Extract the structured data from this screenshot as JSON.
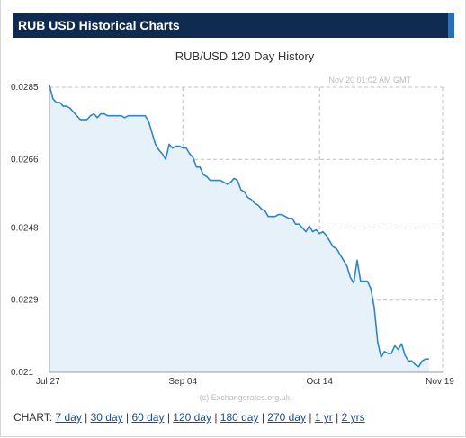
{
  "header": {
    "title": "RUB USD Historical Charts"
  },
  "chart_data": {
    "type": "area",
    "title": "RUB/USD  120 Day History",
    "timestamp": "Nov 20  01:02 AM GMT",
    "watermark": "(c) Exchangerates.org.uk",
    "xlabel": "",
    "ylabel": "",
    "ylim": [
      0.021,
      0.0285
    ],
    "yticks": [
      "0.0285",
      "0.0266",
      "0.0248",
      "0.0229",
      "0.021"
    ],
    "ytick_values": [
      0.0285,
      0.0266,
      0.0248,
      0.0229,
      0.021
    ],
    "xlim": [
      0,
      115
    ],
    "xticks": [
      {
        "label": "Jul 27",
        "day": 0
      },
      {
        "label": "Sep 04",
        "day": 39
      },
      {
        "label": "Oct 14",
        "day": 79
      },
      {
        "label": "Nov 19",
        "day": 115
      }
    ],
    "grid": true,
    "legend": "none",
    "series": [
      {
        "color": "#2f86c1",
        "fill": "#e6f1fa",
        "points": [
          [
            0,
            0.02855
          ],
          [
            1,
            0.0282
          ],
          [
            2,
            0.0281
          ],
          [
            3,
            0.0281
          ],
          [
            4,
            0.028
          ],
          [
            5,
            0.028
          ],
          [
            6,
            0.02795
          ],
          [
            7,
            0.02785
          ],
          [
            8,
            0.02775
          ],
          [
            9,
            0.02765
          ],
          [
            10,
            0.02765
          ],
          [
            11,
            0.02765
          ],
          [
            12,
            0.02775
          ],
          [
            13,
            0.0278
          ],
          [
            14,
            0.0277
          ],
          [
            15,
            0.0278
          ],
          [
            16,
            0.0278
          ],
          [
            17,
            0.02775
          ],
          [
            18,
            0.02775
          ],
          [
            19,
            0.02775
          ],
          [
            20,
            0.02775
          ],
          [
            21,
            0.02775
          ],
          [
            22,
            0.0277
          ],
          [
            23,
            0.02775
          ],
          [
            24,
            0.02775
          ],
          [
            25,
            0.02775
          ],
          [
            26,
            0.02775
          ],
          [
            27,
            0.02775
          ],
          [
            28,
            0.02775
          ],
          [
            29,
            0.0276
          ],
          [
            30,
            0.0273
          ],
          [
            31,
            0.027
          ],
          [
            32,
            0.02685
          ],
          [
            33,
            0.02675
          ],
          [
            34,
            0.0266
          ],
          [
            35,
            0.027
          ],
          [
            36,
            0.0269
          ],
          [
            37,
            0.02695
          ],
          [
            38,
            0.02695
          ],
          [
            39,
            0.0269
          ],
          [
            40,
            0.0269
          ],
          [
            41,
            0.02675
          ],
          [
            42,
            0.02665
          ],
          [
            43,
            0.0264
          ],
          [
            44,
            0.0264
          ],
          [
            45,
            0.0262
          ],
          [
            46,
            0.02615
          ],
          [
            47,
            0.02605
          ],
          [
            48,
            0.02605
          ],
          [
            49,
            0.02605
          ],
          [
            50,
            0.02605
          ],
          [
            51,
            0.026
          ],
          [
            52,
            0.02595
          ],
          [
            53,
            0.026
          ],
          [
            54,
            0.0261
          ],
          [
            55,
            0.02605
          ],
          [
            56,
            0.0258
          ],
          [
            57,
            0.02575
          ],
          [
            58,
            0.0256
          ],
          [
            59,
            0.02555
          ],
          [
            60,
            0.02545
          ],
          [
            61,
            0.0254
          ],
          [
            62,
            0.0253
          ],
          [
            63,
            0.02525
          ],
          [
            64,
            0.0251
          ],
          [
            65,
            0.0251
          ],
          [
            66,
            0.0251
          ],
          [
            67,
            0.02515
          ],
          [
            68,
            0.02515
          ],
          [
            69,
            0.0251
          ],
          [
            70,
            0.02505
          ],
          [
            71,
            0.02505
          ],
          [
            72,
            0.0249
          ],
          [
            73,
            0.0249
          ],
          [
            74,
            0.0248
          ],
          [
            75,
            0.0247
          ],
          [
            76,
            0.02485
          ],
          [
            77,
            0.0247
          ],
          [
            78,
            0.02475
          ],
          [
            79,
            0.02465
          ],
          [
            80,
            0.0247
          ],
          [
            81,
            0.0246
          ],
          [
            82,
            0.02445
          ],
          [
            83,
            0.0243
          ],
          [
            84,
            0.02425
          ],
          [
            85,
            0.0241
          ],
          [
            86,
            0.02395
          ],
          [
            87,
            0.0238
          ],
          [
            88,
            0.0235
          ],
          [
            89,
            0.02335
          ],
          [
            90,
            0.02395
          ],
          [
            91,
            0.0234
          ],
          [
            92,
            0.0234
          ],
          [
            93,
            0.0234
          ],
          [
            94,
            0.0232
          ],
          [
            95,
            0.0227
          ],
          [
            96,
            0.0218
          ],
          [
            97,
            0.0214
          ],
          [
            98,
            0.02155
          ],
          [
            99,
            0.0215
          ],
          [
            100,
            0.0215
          ],
          [
            101,
            0.0217
          ],
          [
            102,
            0.0216
          ],
          [
            103,
            0.02175
          ],
          [
            104,
            0.02145
          ],
          [
            105,
            0.0213
          ],
          [
            106,
            0.0213
          ],
          [
            107,
            0.0212
          ],
          [
            108,
            0.02115
          ],
          [
            109,
            0.0213
          ],
          [
            110,
            0.02135
          ],
          [
            111,
            0.02135
          ]
        ]
      }
    ]
  },
  "links": {
    "prefix": "CHART:",
    "items": [
      "7 day",
      "30 day",
      "60 day",
      "120 day",
      "180 day",
      "270 day",
      "1 yr",
      "2 yrs"
    ],
    "separator": "|"
  }
}
